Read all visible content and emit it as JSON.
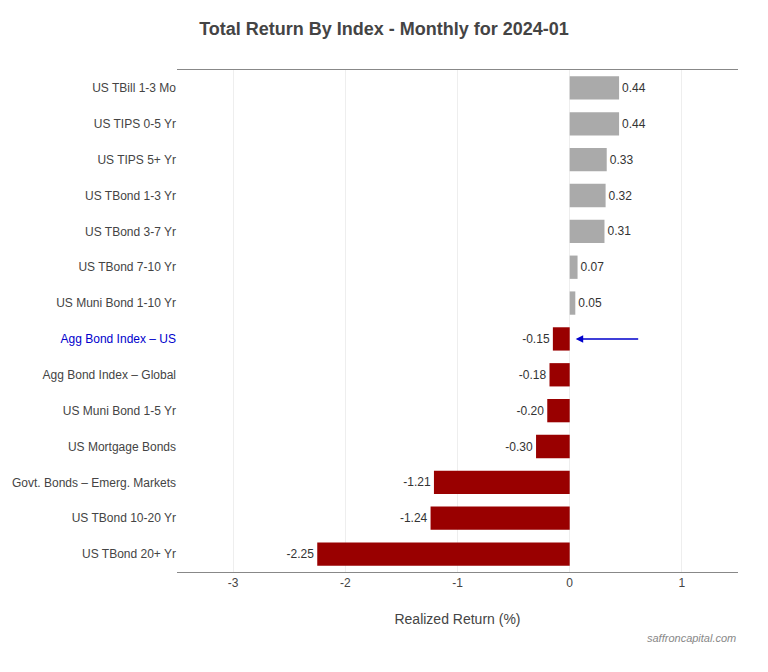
{
  "chart_data": {
    "type": "bar",
    "orientation": "horizontal",
    "title": "Total Return By Index - Monthly for 2024-01",
    "xlabel": "Realized Return (%)",
    "categories": [
      "US TBond 20+ Yr",
      "US TBond 10-20 Yr",
      "Govt. Bonds – Emerg. Markets",
      "US Mortgage Bonds",
      "US Muni Bond 1-5 Yr",
      "Agg Bond Index – Global",
      "Agg Bond Index – US",
      "US Muni Bond 1-10 Yr",
      "US TBond 7-10 Yr",
      "US TBond 3-7 Yr",
      "US TBond 1-3 Yr",
      "US TIPS 5+ Yr",
      "US TIPS 0-5 Yr",
      "US TBill 1-3 Mo"
    ],
    "values": [
      -2.25,
      -1.24,
      -1.21,
      -0.3,
      -0.2,
      -0.18,
      -0.15,
      0.05,
      0.07,
      0.31,
      0.32,
      0.33,
      0.44,
      0.44
    ],
    "value_labels": [
      "-2.25",
      "-1.24",
      "-1.21",
      "-0.30",
      "-0.20",
      "-0.18",
      "-0.15",
      "0.05",
      "0.07",
      "0.31",
      "0.32",
      "0.33",
      "0.44",
      "0.44"
    ],
    "colors": [
      "#990000",
      "#990000",
      "#990000",
      "#990000",
      "#990000",
      "#990000",
      "#990000",
      "#aaaaaa",
      "#aaaaaa",
      "#aaaaaa",
      "#aaaaaa",
      "#aaaaaa",
      "#aaaaaa",
      "#aaaaaa"
    ],
    "data_labels": true,
    "highlight": {
      "category": "Agg Bond Index – US",
      "color": "#0000cc"
    },
    "xlim": [
      -3.5,
      1.5
    ],
    "xticks": [
      -3,
      -2,
      -1,
      0,
      1
    ],
    "grid": true,
    "annotations": [
      {
        "text": "saffroncapital.com"
      }
    ]
  }
}
